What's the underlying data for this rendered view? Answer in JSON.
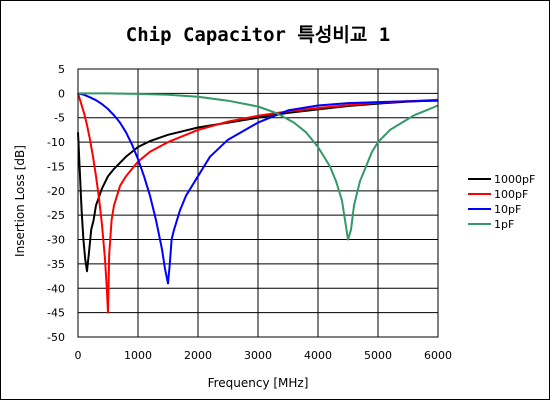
{
  "chart_data": {
    "type": "line",
    "title": "Chip Capacitor 특성비교 1",
    "xlabel": "Frequency [MHz]",
    "ylabel": "Insertion Loss [dB]",
    "xlim": [
      0,
      6000
    ],
    "ylim": [
      -50,
      5
    ],
    "xticks": [
      0,
      1000,
      2000,
      3000,
      4000,
      5000,
      6000
    ],
    "yticks": [
      5,
      0,
      -5,
      -10,
      -15,
      -20,
      -25,
      -30,
      -35,
      -40,
      -45,
      -50
    ],
    "grid": true,
    "legend_position": "right",
    "series": [
      {
        "name": "1000pF",
        "color": "#000000",
        "x": [
          0,
          30,
          60,
          90,
          120,
          150,
          180,
          220,
          260,
          300,
          400,
          500,
          600,
          800,
          1000,
          1200,
          1500,
          2000,
          2500,
          3000,
          3500,
          4000,
          4500,
          5000,
          5500,
          6000
        ],
        "y": [
          -8,
          -16,
          -24,
          -30,
          -34,
          -36.5,
          -33,
          -28,
          -26,
          -23,
          -19.5,
          -17,
          -15.5,
          -13,
          -11,
          -9.8,
          -8.5,
          -7,
          -6,
          -5,
          -4,
          -3.3,
          -2.6,
          -2.1,
          -1.7,
          -1.4
        ]
      },
      {
        "name": "100pF",
        "color": "#ff0000",
        "x": [
          0,
          50,
          100,
          150,
          200,
          250,
          300,
          350,
          400,
          450,
          480,
          500,
          520,
          560,
          600,
          700,
          800,
          1000,
          1200,
          1500,
          2000,
          2500,
          3000,
          3500,
          4000,
          4500,
          5000,
          5500,
          6000
        ],
        "y": [
          0,
          -2,
          -4,
          -6.5,
          -9.5,
          -13,
          -17,
          -21.5,
          -27,
          -34,
          -40,
          -45,
          -33,
          -26,
          -23,
          -19,
          -17,
          -14,
          -12,
          -10,
          -7.5,
          -5.8,
          -4.6,
          -3.7,
          -3,
          -2.4,
          -1.9,
          -1.6,
          -1.3
        ]
      },
      {
        "name": "10pF",
        "color": "#0000ff",
        "x": [
          0,
          100,
          200,
          300,
          400,
          500,
          600,
          700,
          800,
          900,
          1000,
          1100,
          1200,
          1300,
          1400,
          1450,
          1500,
          1530,
          1560,
          1600,
          1700,
          1800,
          2000,
          2200,
          2500,
          3000,
          3500,
          4000,
          4500,
          5000,
          5500,
          6000
        ],
        "y": [
          0,
          -0.3,
          -0.8,
          -1.4,
          -2.2,
          -3.2,
          -4.5,
          -6,
          -8,
          -10.5,
          -13.5,
          -17,
          -21,
          -26,
          -32,
          -36,
          -39,
          -35,
          -30,
          -28,
          -24,
          -21,
          -17,
          -13,
          -9.5,
          -6,
          -3.5,
          -2.5,
          -2,
          -1.8,
          -1.6,
          -1.5
        ]
      },
      {
        "name": "1pF",
        "color": "#339966",
        "x": [
          0,
          500,
          1000,
          1500,
          2000,
          2500,
          3000,
          3300,
          3600,
          3800,
          4000,
          4200,
          4300,
          4400,
          4450,
          4500,
          4550,
          4600,
          4700,
          4800,
          4900,
          5000,
          5200,
          5400,
          5600,
          5800,
          6000
        ],
        "y": [
          0,
          0,
          -0.1,
          -0.3,
          -0.7,
          -1.5,
          -2.7,
          -4,
          -6,
          -8,
          -11,
          -15,
          -18,
          -22,
          -26,
          -30,
          -28,
          -23,
          -18,
          -15,
          -12,
          -10,
          -7.5,
          -6,
          -4.5,
          -3.5,
          -2.5
        ]
      }
    ]
  }
}
